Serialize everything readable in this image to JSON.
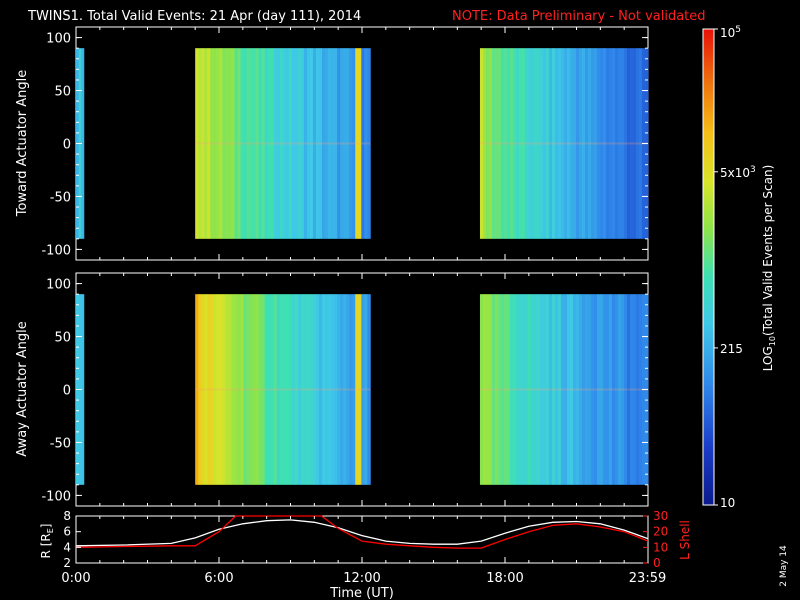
{
  "header": {
    "title": "TWINS1. Total Valid Events: 21 Apr (day 111), 2014",
    "note": "NOTE: Data Preliminary - Not validated",
    "note_color": "#ff0000"
  },
  "side_note": "2 May 14",
  "chart_data": [
    {
      "type": "heatmap",
      "ylabel": "Toward Actuator Angle",
      "ylim": [
        -110,
        110
      ],
      "yticks": [
        "100",
        "50",
        "0",
        "-50",
        "-100"
      ],
      "xlim": [
        0,
        24
      ],
      "angle_range": [
        -90,
        90
      ],
      "blocks": [
        {
          "start_ut": 0.0,
          "end_ut": 0.33,
          "level": 0.38
        },
        {
          "start_ut": 5.0,
          "end_ut": 12.35,
          "level_start": 0.7,
          "level_end": 0.25,
          "edge_spike_ut": 11.9
        },
        {
          "start_ut": 16.95,
          "end_ut": 24.0,
          "level_start": 0.62,
          "level_end": 0.18
        }
      ]
    },
    {
      "type": "heatmap",
      "ylabel": "Away Actuator Angle",
      "ylim": [
        -110,
        110
      ],
      "yticks": [
        "100",
        "50",
        "0",
        "-50",
        "-100"
      ],
      "xlim": [
        0,
        24
      ],
      "angle_range": [
        -90,
        90
      ],
      "blocks": [
        {
          "start_ut": 0.0,
          "end_ut": 0.33,
          "level": 0.38
        },
        {
          "start_ut": 5.0,
          "end_ut": 12.35,
          "level_start": 0.78,
          "level_end": 0.28,
          "edge_spike_ut": 11.9
        },
        {
          "start_ut": 16.95,
          "end_ut": 24.0,
          "level_start": 0.6,
          "level_end": 0.22
        }
      ]
    },
    {
      "type": "line",
      "ylabel_left": "R [R",
      "ylabel_left_sub": "E",
      "ylabel_left_end": "]",
      "ylabel_right": "L Shell",
      "ylim_left": [
        2,
        8
      ],
      "yticks_left": [
        "8",
        "6",
        "4",
        "2"
      ],
      "ylim_right": [
        0,
        30
      ],
      "yticks_right": [
        "30",
        "20",
        "10",
        "0"
      ],
      "xticks": [
        "0:00",
        "6:00",
        "12:00",
        "18:00",
        "23:59"
      ],
      "xtick_values": [
        0,
        6,
        12,
        18,
        23.98
      ],
      "xlabel": "Time (UT)",
      "series": [
        {
          "axis": "left",
          "color": "#ffffff",
          "x": [
            0,
            2,
            4,
            5,
            6,
            7,
            8,
            9,
            10,
            11,
            12,
            13,
            14,
            15,
            16,
            17,
            18,
            19,
            20,
            21,
            22,
            23,
            24
          ],
          "y": [
            4.2,
            4.3,
            4.5,
            5.2,
            6.3,
            7.0,
            7.4,
            7.5,
            7.2,
            6.5,
            5.5,
            4.8,
            4.5,
            4.4,
            4.4,
            4.8,
            5.8,
            6.7,
            7.2,
            7.3,
            7.0,
            6.2,
            5.1
          ]
        },
        {
          "axis": "right",
          "color": "#ff0000",
          "x": [
            0,
            2,
            4,
            5,
            6,
            6.7,
            10.3,
            11,
            12,
            13,
            14,
            15,
            16,
            17,
            18,
            19,
            20,
            21,
            22,
            23,
            24
          ],
          "y": [
            10,
            10.5,
            11,
            11,
            20,
            31,
            31,
            22,
            14,
            12,
            11,
            10,
            9.5,
            9.5,
            15,
            20,
            24,
            25,
            23,
            20,
            14
          ]
        }
      ]
    }
  ],
  "colorbar": {
    "label_main": "LOG",
    "label_sub": "10",
    "label_rest": "(Total Valid Events per Scan)",
    "ticks": [
      {
        "pos": 1.0,
        "base": "10",
        "exp": "5"
      },
      {
        "pos": 0.7,
        "base": "5x10",
        "exp": "3"
      },
      {
        "pos": 0.33,
        "base": "215",
        "exp": ""
      },
      {
        "pos": 0.0,
        "base": "10",
        "exp": ""
      }
    ]
  }
}
